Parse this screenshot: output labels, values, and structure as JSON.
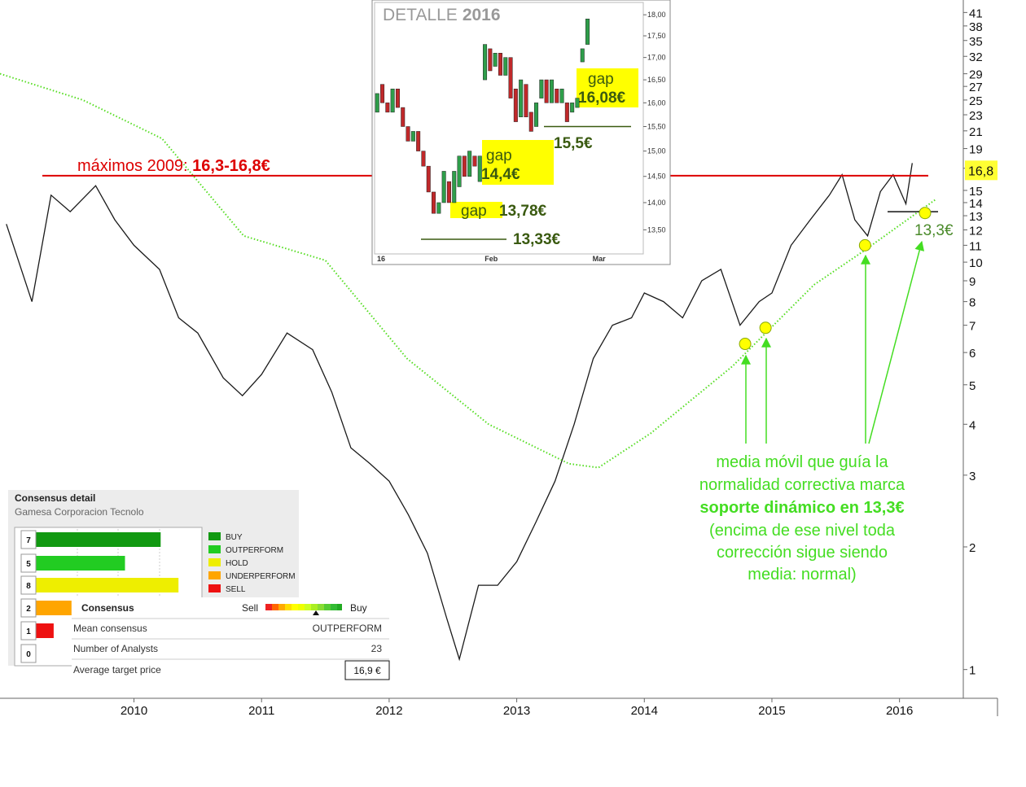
{
  "chart_data": [
    {
      "type": "line",
      "log_scale": true,
      "xlim": [
        2008.95,
        2016.5
      ],
      "xticks": [
        2010,
        2011,
        2012,
        2013,
        2014,
        2015,
        2016
      ],
      "ylim": [
        0.85,
        43
      ],
      "yticks": [
        1,
        2,
        3,
        4,
        5,
        6,
        7,
        8,
        9,
        10,
        11,
        12,
        13,
        14,
        15,
        17,
        19,
        21,
        23,
        25,
        27,
        29,
        32,
        35,
        38,
        41
      ],
      "series": [
        {
          "color": "#1a1a1a",
          "style": "solid",
          "x": [
            2009.0,
            2009.2,
            2009.35,
            2009.5,
            2009.7,
            2009.85,
            2010.0,
            2010.2,
            2010.35,
            2010.5,
            2010.7,
            2010.85,
            2011.0,
            2011.2,
            2011.4,
            2011.55,
            2011.7,
            2011.85,
            2012.0,
            2012.15,
            2012.3,
            2012.45,
            2012.55,
            2012.7,
            2012.85,
            2013.0,
            2013.15,
            2013.3,
            2013.45,
            2013.6,
            2013.75,
            2013.9,
            2014.0,
            2014.15,
            2014.3,
            2014.45,
            2014.6,
            2014.75,
            2014.9,
            2015.0,
            2015.15,
            2015.3,
            2015.45,
            2015.55,
            2015.65,
            2015.75,
            2015.85,
            2015.95,
            2016.05,
            2016.1
          ],
          "values": [
            12.4,
            8.0,
            14.6,
            13.3,
            15.4,
            12.7,
            11.0,
            9.6,
            7.3,
            6.7,
            5.2,
            4.7,
            5.3,
            6.7,
            6.1,
            4.8,
            3.5,
            3.2,
            2.9,
            2.4,
            1.93,
            1.34,
            1.06,
            1.61,
            1.61,
            1.84,
            2.3,
            2.9,
            4.0,
            5.8,
            7.0,
            7.3,
            8.4,
            8.0,
            7.3,
            9.0,
            9.6,
            7.0,
            8.0,
            8.4,
            11.0,
            12.7,
            14.6,
            16.4,
            12.7,
            11.6,
            14.9,
            16.4,
            13.9,
            17.5
          ]
        },
        {
          "color": "#55dd22",
          "style": "dotted",
          "x": [
            2008.95,
            2009.6,
            2010.22,
            2010.86,
            2011.5,
            2012.14,
            2012.78,
            2013.41,
            2013.64,
            2014.05,
            2014.69,
            2015.33,
            2015.71,
            2016.29
          ],
          "values": [
            29,
            25,
            20.1,
            11.6,
            10.1,
            5.8,
            4.0,
            3.2,
            3.13,
            3.8,
            5.55,
            8.8,
            10.6,
            14.3
          ]
        }
      ],
      "resistance": {
        "value": 16.3,
        "color": "#dd0000",
        "text": "máximos 2009: ",
        "label": "16,3-16,8€"
      },
      "last_price": {
        "value": 16.8,
        "label": "16,8"
      },
      "support": {
        "value": 13.3,
        "label": "13,3€"
      },
      "touch_points": {
        "x": [
          2014.79,
          2014.95,
          2015.73,
          2016.2
        ],
        "values": [
          6.3,
          6.9,
          11.0,
          13.2
        ]
      },
      "annotation": [
        "media móvil que guía la",
        "normalidad correctiva marca",
        "soporte dinámico en 13,3€",
        "(encima de ese nivel toda",
        "corrección sigue siendo",
        "media: normal)"
      ]
    },
    {
      "type": "candlestick",
      "log_scale": true,
      "title": "DETALLE",
      "title_year": "2016",
      "categories": [
        "16",
        null,
        null,
        null,
        null,
        null,
        null,
        null,
        null,
        null,
        null,
        null,
        null,
        null,
        null,
        null,
        null,
        null,
        null,
        null,
        null,
        "Feb",
        null,
        null,
        null,
        null,
        null,
        null,
        null,
        null,
        null,
        null,
        null,
        null,
        null,
        null,
        null,
        null,
        null,
        null,
        null,
        null,
        "Mar"
      ],
      "open": [
        15.8,
        16.4,
        16.0,
        15.8,
        16.3,
        15.9,
        15.5,
        15.2,
        15.4,
        15.0,
        14.7,
        14.2,
        13.8,
        14.0,
        14.4,
        14.0,
        14.3,
        14.9,
        14.5,
        14.9,
        14.4,
        16.5,
        17.2,
        16.8,
        17.1,
        16.6,
        17.0,
        16.3,
        15.7,
        16.4,
        15.8,
        15.5,
        16.1,
        16.5,
        16.0,
        16.3,
        16.0,
        16.0,
        15.8,
        15.9,
        16.9,
        17.3,
        null
      ],
      "close": [
        16.2,
        16.0,
        15.8,
        16.3,
        15.9,
        15.5,
        15.2,
        15.4,
        15.0,
        14.7,
        14.2,
        13.8,
        14.0,
        14.6,
        14.0,
        14.6,
        14.9,
        14.5,
        15.0,
        14.7,
        14.9,
        17.3,
        16.7,
        17.1,
        16.6,
        17.0,
        16.1,
        15.6,
        16.5,
        15.7,
        15.4,
        16.0,
        16.5,
        16.0,
        16.5,
        16.0,
        16.3,
        15.6,
        16.0,
        16.1,
        17.2,
        17.9,
        null
      ],
      "up_color": "#2e9e4a",
      "down_color": "#c0282a",
      "ylim": [
        13.1,
        18.2
      ],
      "yticks": [
        {
          "value": 13.5,
          "label": "13,50"
        },
        {
          "value": 14,
          "label": "14,00"
        },
        {
          "value": 14.5,
          "label": "14,50"
        },
        {
          "value": 15,
          "label": "15,00"
        },
        {
          "value": 15.5,
          "label": "15,50"
        },
        {
          "value": 16,
          "label": "16,00"
        },
        {
          "value": 16.5,
          "label": "16,50"
        },
        {
          "value": 17,
          "label": "17,00"
        },
        {
          "value": 17.5,
          "label": "17,50"
        },
        {
          "value": 18,
          "label": "18,00"
        }
      ],
      "levels": [
        {
          "value": 13.33,
          "label": "13,33€"
        },
        {
          "value": 15.5,
          "label": "15,5€"
        }
      ],
      "gaps": [
        {
          "text": "gap",
          "label": "14,4€"
        },
        {
          "text": "gap",
          "label": "13,78€"
        },
        {
          "text": "gap",
          "label": "16,08€"
        }
      ]
    }
  ],
  "consensus": {
    "title": "Consensus detail",
    "subtitle": "Gamesa Corporacion Tecnolo",
    "labels": [
      "BUY",
      "OUTPERFORM",
      "HOLD",
      "UNDERPERFORM",
      "SELL",
      null
    ],
    "counts": [
      7,
      5,
      8,
      2,
      1,
      0
    ],
    "colors": [
      "#119911",
      "#22cc22",
      "#eeee00",
      "#ffa500",
      "#ee1111",
      "#ffffff"
    ],
    "table": {
      "header": "Consensus",
      "sell": "Sell",
      "buy": "Buy",
      "rows": [
        [
          "Mean consensus",
          "OUTPERFORM"
        ],
        [
          "Number of Analysts",
          23
        ],
        [
          "Average target price",
          "16,9 €"
        ]
      ]
    }
  }
}
